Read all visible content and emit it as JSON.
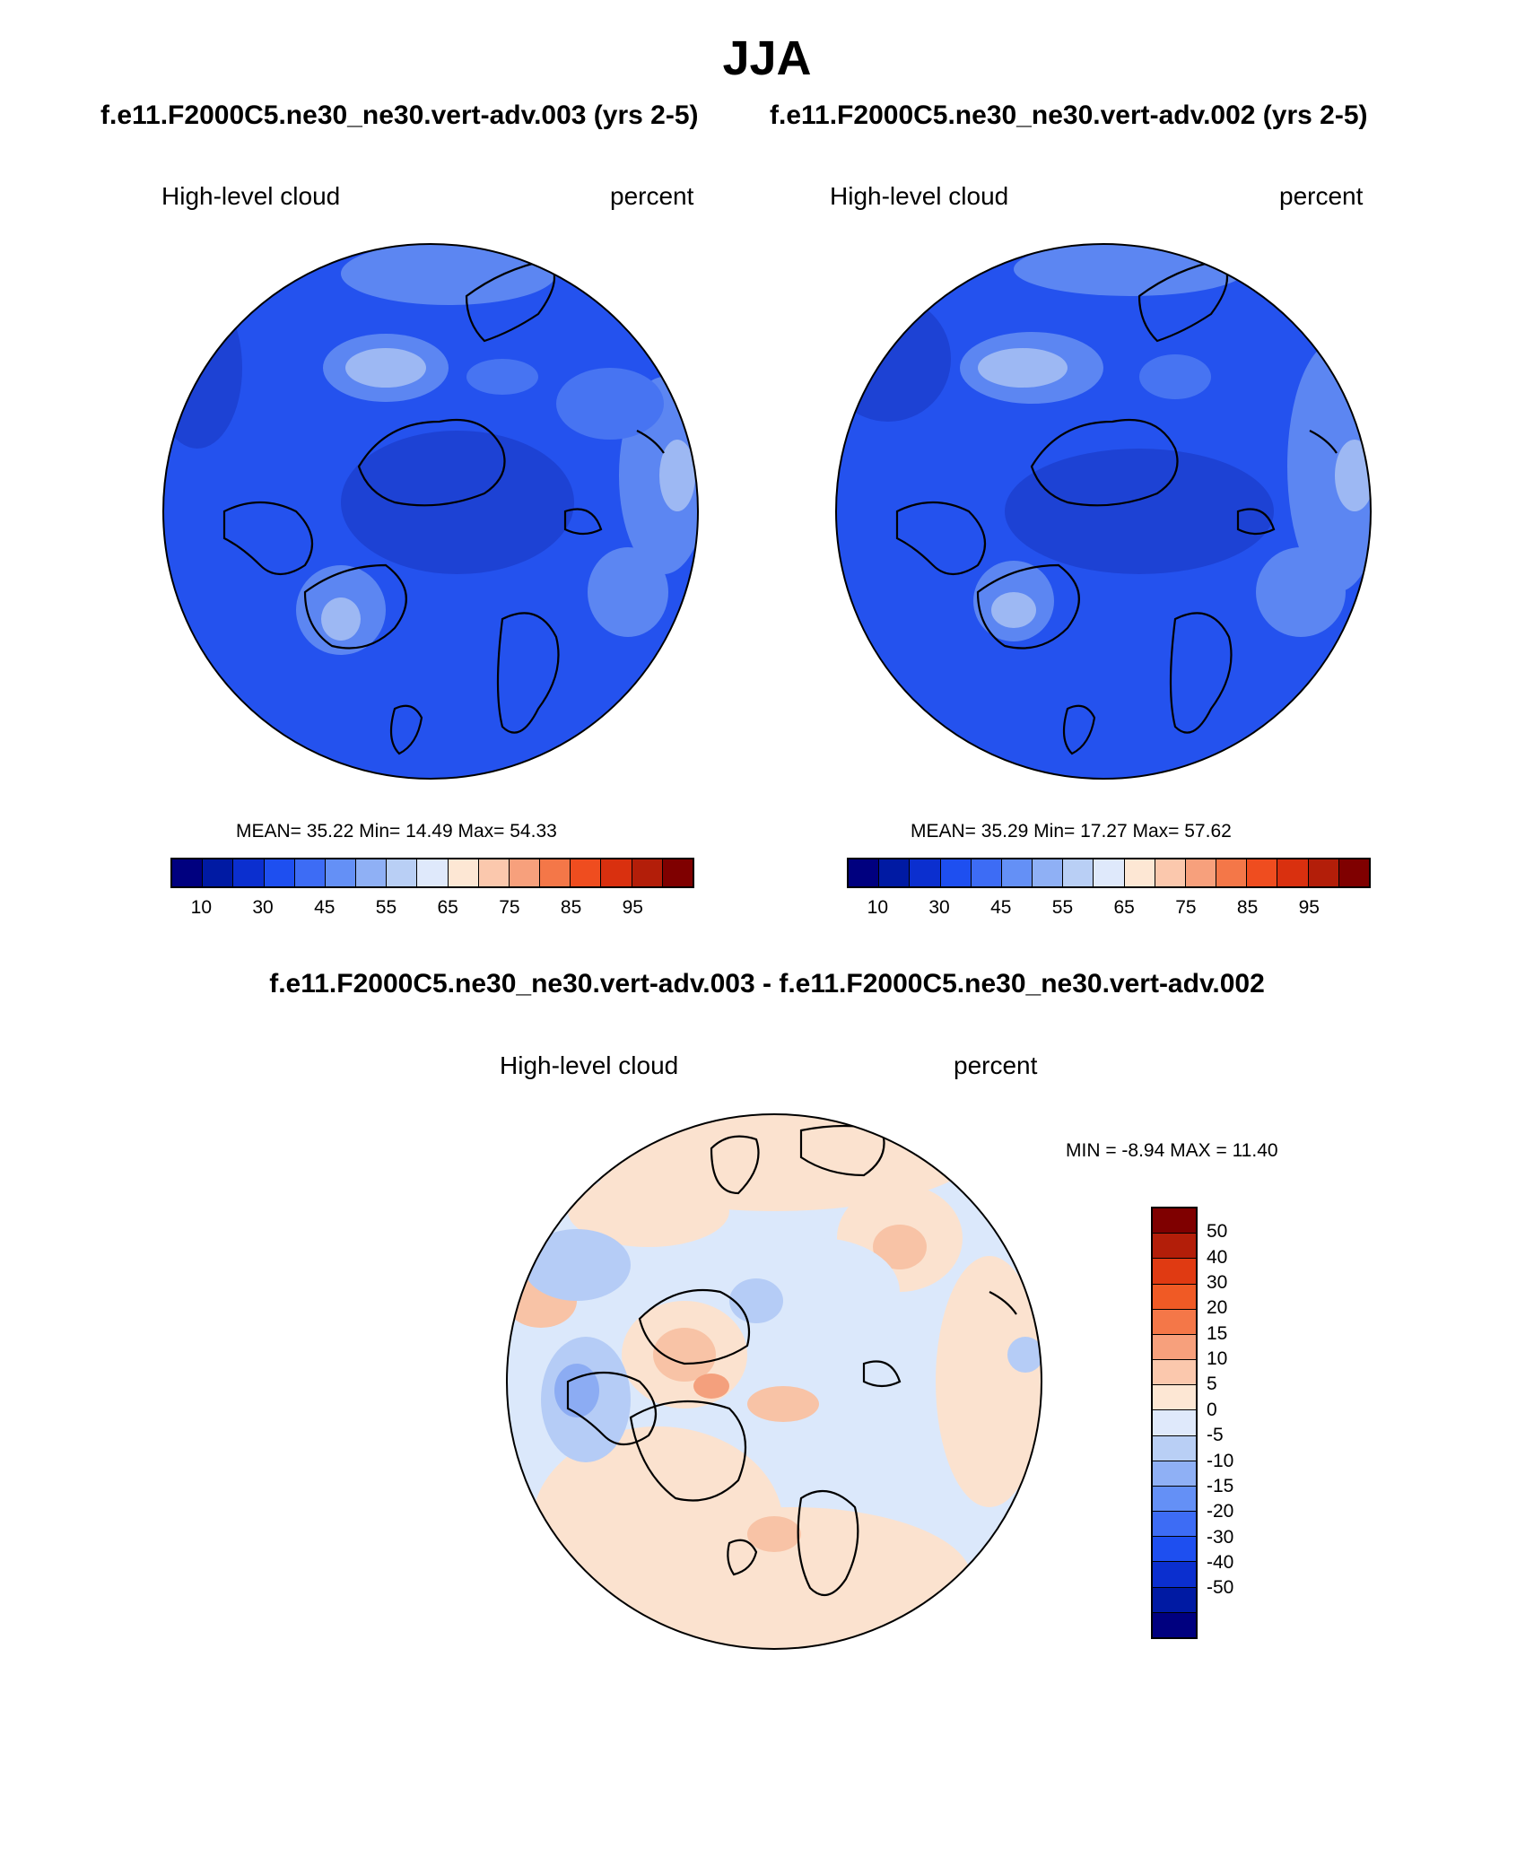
{
  "season": "JJA",
  "header": {
    "left_case": "f.e11.F2000C5.ne30_ne30.vert-adv.003 (yrs 2-5)",
    "right_case": "f.e11.F2000C5.ne30_ne30.vert-adv.002 (yrs 2-5)",
    "diff_title": "f.e11.F2000C5.ne30_ne30.vert-adv.003 - f.e11.F2000C5.ne30_ne30.vert-adv.002"
  },
  "panels": [
    {
      "variable": "High-level cloud",
      "units": "percent",
      "stats": "MEAN=  35.22  Min=  14.49  Max=  54.33",
      "mean": 35.22,
      "min": 14.49,
      "max": 54.33
    },
    {
      "variable": "High-level cloud",
      "units": "percent",
      "stats": "MEAN=  35.29  Min=  17.27  Max=  57.62",
      "mean": 35.29,
      "min": 17.27,
      "max": 57.62
    },
    {
      "variable": "High-level cloud",
      "units": "percent",
      "stats": "MIN =  -8.94 MAX =  11.40",
      "min": -8.94,
      "max": 11.4
    }
  ],
  "abs_colorbar": {
    "colors": [
      "#00007f",
      "#001aa3",
      "#0b2fcf",
      "#1e4ff0",
      "#3d6cf5",
      "#6490f6",
      "#8fb0f5",
      "#b9cff5",
      "#dfe9fb",
      "#fde7d4",
      "#fbc8ad",
      "#f7a07c",
      "#f47748",
      "#ef4d1f",
      "#d9300f",
      "#b31e09",
      "#7f0000"
    ],
    "tick_labels": [
      "10",
      "30",
      "45",
      "55",
      "65",
      "75",
      "85",
      "95"
    ]
  },
  "diff_colorbar": {
    "colors": [
      "#7f0000",
      "#b31e09",
      "#e03a12",
      "#f05a25",
      "#f47748",
      "#f7a07c",
      "#fbc8ad",
      "#fde7d4",
      "#dfe9fb",
      "#b9cff5",
      "#8fb0f5",
      "#6490f6",
      "#3d6cf5",
      "#1e4ff0",
      "#0b2fcf",
      "#001aa3",
      "#00007f"
    ],
    "tick_labels": [
      "50",
      "40",
      "30",
      "20",
      "15",
      "10",
      "5",
      "0",
      "-5",
      "-10",
      "-15",
      "-20",
      "-30",
      "-40",
      "-50"
    ]
  },
  "map_colors": {
    "abs_base": "#2452ee",
    "abs_dark": "#1d42d4",
    "abs_light": "#5c86f2",
    "abs_lighter": "#9db8f3",
    "diff_neutral_blue": "#dbe8fb",
    "diff_light_blue": "#b5ccf6",
    "diff_blue": "#8cacf3",
    "diff_light_red": "#fbe2cf",
    "diff_red": "#f8c3a6"
  }
}
